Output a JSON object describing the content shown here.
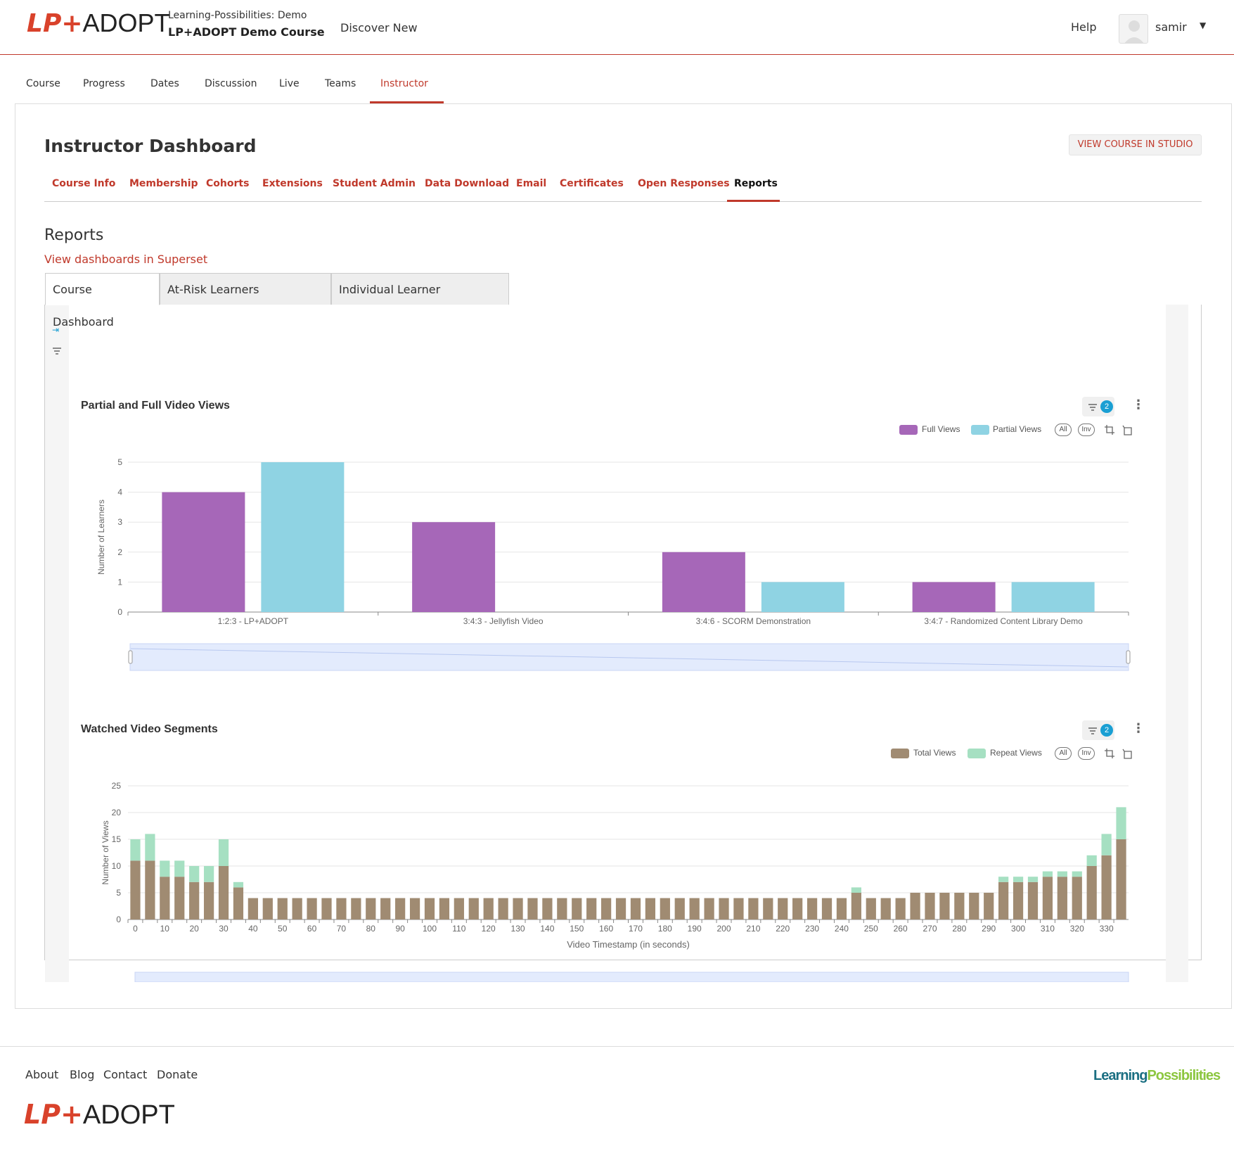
{
  "header": {
    "logo_lp": "LP+",
    "logo_adopt": "ADOPT",
    "course_org": "Learning-Possibilities: Demo",
    "course_name": "LP+ADOPT Demo Course",
    "discover": "Discover New",
    "help": "Help",
    "username": "samir"
  },
  "course_tabs": [
    "Course",
    "Progress",
    "Dates",
    "Discussion",
    "Live",
    "Teams",
    "Instructor"
  ],
  "instructor": {
    "title": "Instructor Dashboard",
    "studio_button": "VIEW COURSE IN STUDIO",
    "tabs": [
      "Course Info",
      "Membership",
      "Cohorts",
      "Extensions",
      "Student Admin",
      "Data Download",
      "Email",
      "Certificates",
      "Open Responses",
      "Reports"
    ]
  },
  "reports": {
    "heading": "Reports",
    "superset_link": "View dashboards in Superset",
    "dashboard_tabs": [
      "Course Dashboard",
      "At-Risk Learners Dashboard",
      "Individual Learner Dashboard"
    ]
  },
  "colors": {
    "accent": "#c0392b",
    "full": "#a667b8",
    "partial": "#8fd3e3",
    "total": "#a08b72",
    "repeat": "#a6e0c2",
    "badge": "#1a9fd3"
  },
  "chart_data": [
    {
      "type": "bar",
      "title": "Partial and Full Video Views",
      "ylabel": "Number of Learners",
      "xlabel": "",
      "categories": [
        "1:2:3 - LP+ADOPT",
        "3:4:3 - Jellyfish Video",
        "3:4:6 - SCORM Demonstration",
        "3:4:7 - Randomized Content Library Demo"
      ],
      "series": [
        {
          "name": "Full Views",
          "values": [
            4,
            3,
            2,
            1
          ]
        },
        {
          "name": "Partial Views",
          "values": [
            5,
            0,
            1,
            1
          ]
        }
      ],
      "ylim": [
        0,
        5
      ],
      "yticks": [
        0,
        1,
        2,
        3,
        4,
        5
      ],
      "legend": "top-right",
      "filter_count": "2",
      "legend_buttons": [
        "All",
        "Inv"
      ]
    },
    {
      "type": "bar",
      "stacked": true,
      "title": "Watched Video Segments",
      "ylabel": "Number of Views",
      "xlabel": "Video Timestamp (in seconds)",
      "x": [
        0,
        5,
        10,
        15,
        20,
        25,
        30,
        35,
        40,
        45,
        50,
        55,
        60,
        65,
        70,
        75,
        80,
        85,
        90,
        95,
        100,
        105,
        110,
        115,
        120,
        125,
        130,
        135,
        140,
        145,
        150,
        155,
        160,
        165,
        170,
        175,
        180,
        185,
        190,
        195,
        200,
        205,
        210,
        215,
        220,
        225,
        230,
        235,
        240,
        245,
        250,
        255,
        260,
        265,
        270,
        275,
        280,
        285,
        290,
        295,
        300,
        305,
        310,
        315,
        320,
        325,
        330,
        335
      ],
      "xticks": [
        0,
        10,
        20,
        30,
        40,
        50,
        60,
        70,
        80,
        90,
        100,
        110,
        120,
        130,
        140,
        150,
        160,
        170,
        180,
        190,
        200,
        210,
        220,
        230,
        240,
        250,
        260,
        270,
        280,
        290,
        300,
        310,
        320,
        330
      ],
      "series": [
        {
          "name": "Total Views",
          "values": [
            11,
            11,
            8,
            8,
            7,
            7,
            10,
            6,
            4,
            4,
            4,
            4,
            4,
            4,
            4,
            4,
            4,
            4,
            4,
            4,
            4,
            4,
            4,
            4,
            4,
            4,
            4,
            4,
            4,
            4,
            4,
            4,
            4,
            4,
            4,
            4,
            4,
            4,
            4,
            4,
            4,
            4,
            4,
            4,
            4,
            4,
            4,
            4,
            4,
            5,
            4,
            4,
            4,
            5,
            5,
            5,
            5,
            5,
            5,
            7,
            7,
            7,
            8,
            8,
            8,
            10,
            12,
            15
          ]
        },
        {
          "name": "Repeat Views",
          "values": [
            4,
            5,
            3,
            3,
            3,
            3,
            5,
            1,
            0,
            0,
            0,
            0,
            0,
            0,
            0,
            0,
            0,
            0,
            0,
            0,
            0,
            0,
            0,
            0,
            0,
            0,
            0,
            0,
            0,
            0,
            0,
            0,
            0,
            0,
            0,
            0,
            0,
            0,
            0,
            0,
            0,
            0,
            0,
            0,
            0,
            0,
            0,
            0,
            0,
            1,
            0,
            0,
            0,
            0,
            0,
            0,
            0,
            0,
            0,
            1,
            1,
            1,
            1,
            1,
            1,
            2,
            4,
            6
          ]
        }
      ],
      "ylim": [
        0,
        25
      ],
      "yticks": [
        0,
        5,
        10,
        15,
        20,
        25
      ],
      "legend": "top-right",
      "filter_count": "2",
      "legend_buttons": [
        "All",
        "Inv"
      ]
    }
  ],
  "footer": {
    "links": [
      "About",
      "Blog",
      "Contact",
      "Donate"
    ],
    "brand_learning": "Learning",
    "brand_possibilities": "Possibilities",
    "logo_lp": "LP+",
    "logo_adopt": "ADOPT"
  }
}
